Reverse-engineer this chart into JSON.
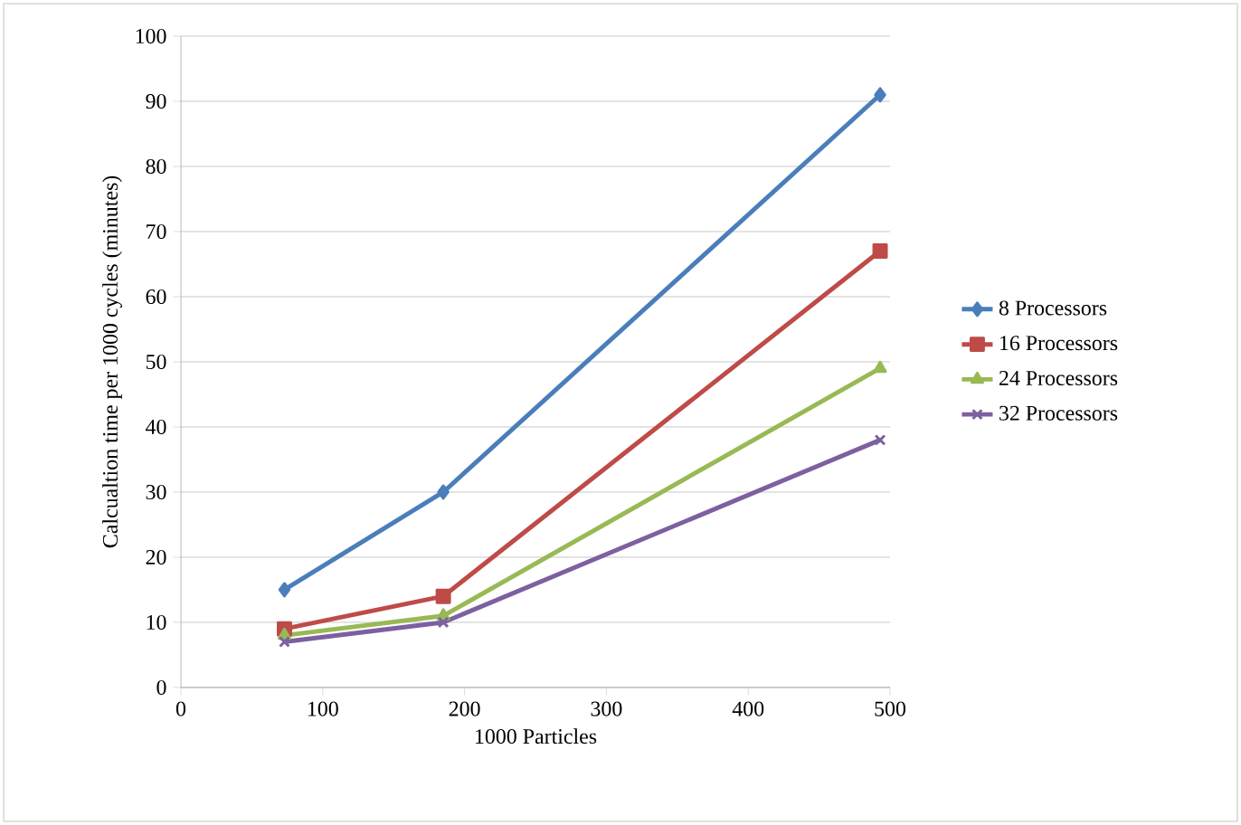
{
  "chart_data": {
    "type": "line",
    "xlabel": "1000 Particles",
    "ylabel": "Calcualtion time per 1000 cycles (minutes)",
    "xlim": [
      0,
      500
    ],
    "xticks": [
      0,
      100,
      200,
      300,
      400,
      500
    ],
    "ylim": [
      0,
      100
    ],
    "yticks": [
      0,
      10,
      20,
      30,
      40,
      50,
      60,
      70,
      80,
      90,
      100
    ],
    "grid": "y",
    "legend": "right",
    "series": [
      {
        "name": "8 Processors",
        "color": "#4a7ebb",
        "marker": "diamond",
        "x": [
          73,
          185,
          493
        ],
        "values": [
          15,
          30,
          91
        ]
      },
      {
        "name": "16 Processors",
        "color": "#be4b48",
        "marker": "square",
        "x": [
          73,
          185,
          493
        ],
        "values": [
          9,
          14,
          67
        ]
      },
      {
        "name": "24 Processors",
        "color": "#98b954",
        "marker": "triangle",
        "x": [
          73,
          185,
          493
        ],
        "values": [
          8,
          11,
          49
        ]
      },
      {
        "name": "32 Processors",
        "color": "#7d60a0",
        "marker": "cross",
        "x": [
          73,
          185,
          493
        ],
        "values": [
          7,
          10,
          38
        ]
      }
    ]
  }
}
